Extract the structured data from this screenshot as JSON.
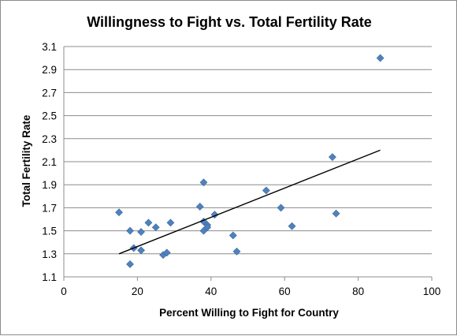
{
  "chart_data": {
    "type": "scatter",
    "title": "Willingness to Fight vs. Total Fertility Rate",
    "xlabel": "Percent Willing to Fight for Country",
    "ylabel": "Total Fertility Rate",
    "xlim": [
      0,
      100
    ],
    "ylim": [
      1.1,
      3.1
    ],
    "x_ticks": [
      "0",
      "20",
      "40",
      "60",
      "80",
      "100"
    ],
    "y_ticks": [
      "1.1",
      "1.3",
      "1.5",
      "1.7",
      "1.9",
      "2.1",
      "2.3",
      "2.5",
      "2.7",
      "2.9",
      "3.1"
    ],
    "grid": "horizontal",
    "legend": "none",
    "marker": "diamond",
    "marker_color": "#4f81bd",
    "trendline": {
      "type": "linear",
      "x": [
        15,
        86
      ],
      "y": [
        1.3,
        2.2
      ],
      "color": "#000000"
    },
    "points": [
      {
        "x": 15,
        "y": 1.66
      },
      {
        "x": 18,
        "y": 1.5
      },
      {
        "x": 18,
        "y": 1.21
      },
      {
        "x": 19,
        "y": 1.35
      },
      {
        "x": 21,
        "y": 1.49
      },
      {
        "x": 21,
        "y": 1.33
      },
      {
        "x": 23,
        "y": 1.57
      },
      {
        "x": 25,
        "y": 1.53
      },
      {
        "x": 27,
        "y": 1.29
      },
      {
        "x": 28,
        "y": 1.31
      },
      {
        "x": 29,
        "y": 1.57
      },
      {
        "x": 37,
        "y": 1.71
      },
      {
        "x": 38,
        "y": 1.92
      },
      {
        "x": 38,
        "y": 1.58
      },
      {
        "x": 38,
        "y": 1.5
      },
      {
        "x": 39,
        "y": 1.55
      },
      {
        "x": 39,
        "y": 1.53
      },
      {
        "x": 41,
        "y": 1.64
      },
      {
        "x": 46,
        "y": 1.46
      },
      {
        "x": 47,
        "y": 1.32
      },
      {
        "x": 55,
        "y": 1.85
      },
      {
        "x": 59,
        "y": 1.7
      },
      {
        "x": 62,
        "y": 1.54
      },
      {
        "x": 73,
        "y": 2.14
      },
      {
        "x": 74,
        "y": 1.65
      },
      {
        "x": 86,
        "y": 3.0
      }
    ]
  }
}
